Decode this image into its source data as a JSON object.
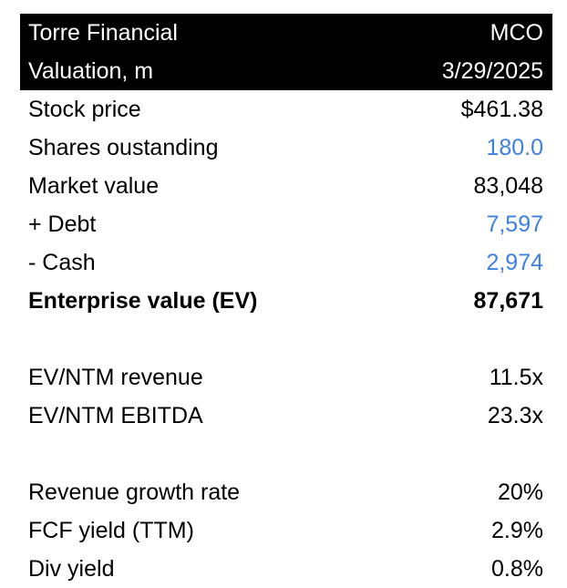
{
  "header": {
    "company": "Torre Financial",
    "ticker": "MCO",
    "subtitle": "Valuation, m",
    "date": "3/29/2025"
  },
  "valuation": [
    {
      "label": "Stock price",
      "value": "$461.38",
      "color": "#000000"
    },
    {
      "label": "Shares oustanding",
      "value": "180.0",
      "color": "#3f7fe0"
    },
    {
      "label": "Market value",
      "value": "83,048",
      "color": "#000000"
    },
    {
      "label": "+ Debt",
      "value": "7,597",
      "color": "#3f7fe0"
    },
    {
      "label": "- Cash",
      "value": "2,974",
      "color": "#3f7fe0"
    },
    {
      "label": "Enterprise value (EV)",
      "value": "87,671",
      "color": "#000000"
    }
  ],
  "multiples": [
    {
      "label": "EV/NTM revenue",
      "value": "11.5x"
    },
    {
      "label": "EV/NTM EBITDA",
      "value": "23.3x"
    }
  ],
  "metrics": [
    {
      "label": "Revenue growth rate",
      "value": "20%"
    },
    {
      "label": "FCF yield (TTM)",
      "value": "2.9%"
    },
    {
      "label": "Div yield",
      "value": "0.8%"
    }
  ]
}
